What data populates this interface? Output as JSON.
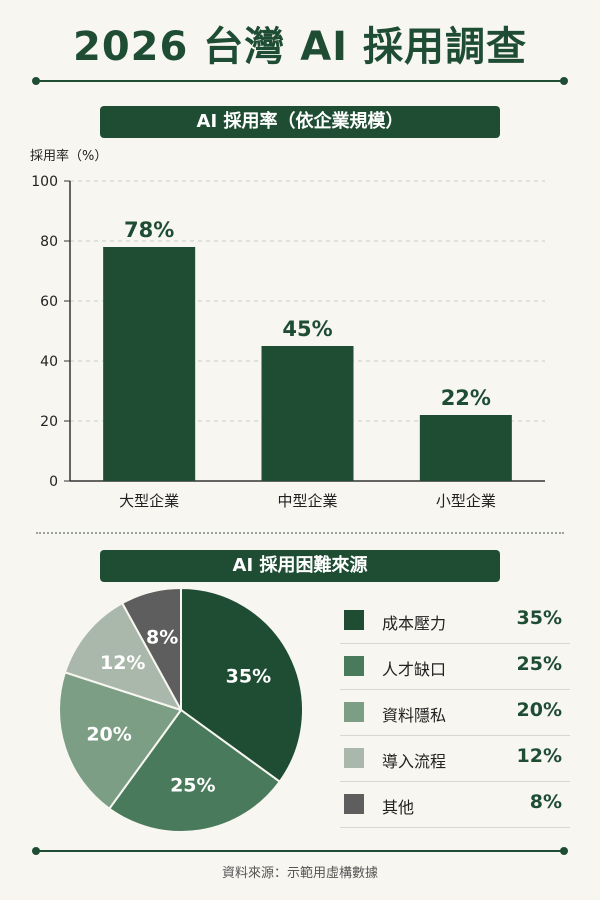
{
  "title": "2026 台灣 AI 採用調查",
  "source": "資料來源：示範用虛構數據",
  "colors": {
    "primary": "#1f4d34",
    "slice_colors": [
      "#1f4d34",
      "#4a7a5c",
      "#7c9e85",
      "#aab8ab",
      "#5e5e5e"
    ]
  },
  "chart_data": [
    {
      "type": "bar",
      "title": "AI 採用率（依企業規模）",
      "ylabel": "採用率（%）",
      "ylim": [
        0,
        100
      ],
      "yticks": [
        0,
        20,
        40,
        60,
        80,
        100
      ],
      "categories": [
        "大型企業",
        "中型企業",
        "小型企業"
      ],
      "values": [
        78,
        45,
        22
      ],
      "value_labels": [
        "78%",
        "45%",
        "22%"
      ],
      "grid": true
    },
    {
      "type": "pie",
      "title": "AI 採用困難來源",
      "labels": [
        "成本壓力",
        "人才缺口",
        "資料隱私",
        "導入流程",
        "其他"
      ],
      "values": [
        35,
        25,
        20,
        12,
        8
      ],
      "value_labels": [
        "35%",
        "25%",
        "20%",
        "12%",
        "8%"
      ],
      "legend": "right"
    }
  ]
}
